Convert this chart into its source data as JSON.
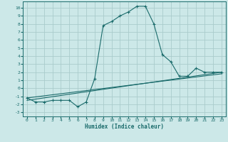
{
  "title": "",
  "xlabel": "Humidex (Indice chaleur)",
  "ylabel": "",
  "background_color": "#cce8e8",
  "grid_color": "#aacccc",
  "line_color": "#1a6b6b",
  "xlim": [
    -0.5,
    23.5
  ],
  "ylim": [
    -3.5,
    10.8
  ],
  "xticks": [
    0,
    1,
    2,
    3,
    4,
    5,
    6,
    7,
    8,
    9,
    10,
    11,
    12,
    13,
    14,
    15,
    16,
    17,
    18,
    19,
    20,
    21,
    22,
    23
  ],
  "yticks": [
    -3,
    -2,
    -1,
    0,
    1,
    2,
    3,
    4,
    5,
    6,
    7,
    8,
    9,
    10
  ],
  "main_x": [
    0,
    1,
    2,
    3,
    4,
    5,
    6,
    7,
    8,
    9,
    10,
    11,
    12,
    13,
    14,
    15,
    16,
    17,
    18,
    19,
    20,
    21,
    22,
    23
  ],
  "main_y": [
    -1.2,
    -1.7,
    -1.7,
    -1.5,
    -1.5,
    -1.5,
    -2.3,
    -1.7,
    1.2,
    7.8,
    8.3,
    9.0,
    9.5,
    10.2,
    10.2,
    8.0,
    4.2,
    3.3,
    1.5,
    1.5,
    2.5,
    2.0,
    2.0,
    2.0
  ],
  "trend1_x": [
    0,
    23
  ],
  "trend1_y": [
    -1.5,
    2.0
  ],
  "trend2_x": [
    0,
    23
  ],
  "trend2_y": [
    -1.2,
    1.8
  ]
}
